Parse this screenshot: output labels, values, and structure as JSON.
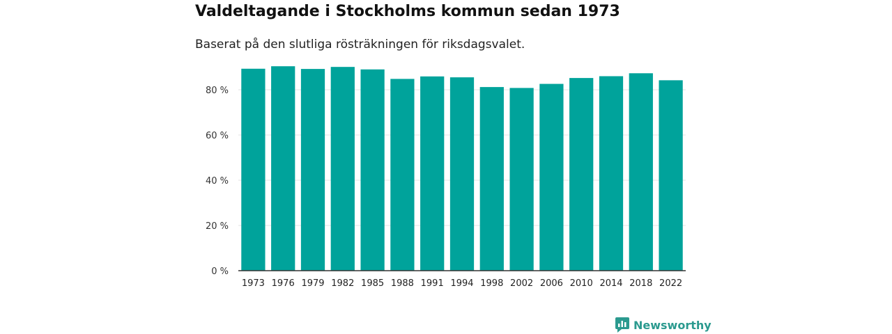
{
  "title": "Valdeltagande i Stockholms kommun sedan 1973",
  "subtitle": "Baserat på den slutliga rösträkningen för riksdagsvalet.",
  "brand": "Newsworthy",
  "colors": {
    "bar": "#00a39b",
    "brand": "#2b9a8f",
    "grid": "#e3e3e3",
    "axis": "#333333"
  },
  "chart_data": {
    "type": "bar",
    "categories": [
      "1973",
      "1976",
      "1979",
      "1982",
      "1985",
      "1988",
      "1991",
      "1994",
      "1998",
      "2002",
      "2006",
      "2010",
      "2014",
      "2018",
      "2022"
    ],
    "values": [
      89.3,
      90.4,
      89.2,
      90.1,
      89.0,
      84.8,
      85.9,
      85.5,
      81.2,
      80.8,
      82.6,
      85.2,
      86.0,
      87.3,
      84.2
    ],
    "ylim": [
      0,
      100
    ],
    "yticks": [
      0,
      20,
      40,
      60,
      80
    ],
    "ytick_labels": [
      "0 %",
      "20 %",
      "40 %",
      "60 %",
      "80 %"
    ],
    "xlabel": "",
    "ylabel": ""
  }
}
